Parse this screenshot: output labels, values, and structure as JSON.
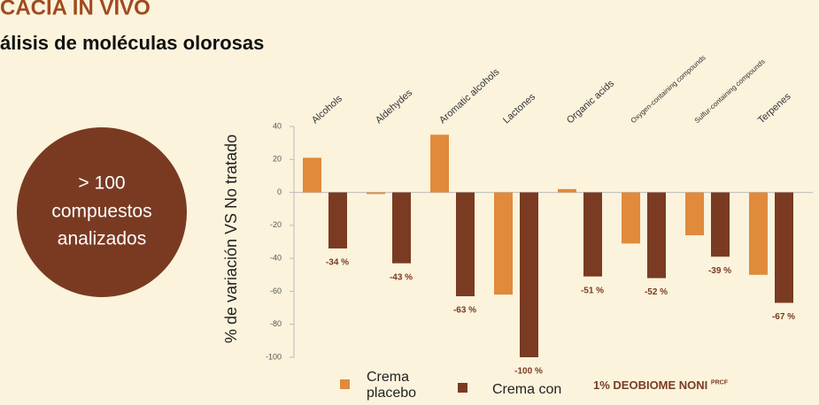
{
  "header": {
    "title": "CACIA IN VIVO",
    "subtitle": "álisis de moléculas olorosas"
  },
  "badge": {
    "line1": "> 100",
    "line2": "compuestos",
    "line3": "analizados"
  },
  "chart_data": {
    "type": "bar",
    "ylabel": "% de variación VS No tratado",
    "categories": [
      "Alcohols",
      "Aldehydes",
      "Aromatic alcohols",
      "Lactones",
      "Organic acids",
      "Oxygen-containing compounds",
      "Sulfur-containing compounds",
      "Terpenes"
    ],
    "series": [
      {
        "name": "Crema placebo",
        "color": "#e08a3c",
        "values": [
          21,
          -1,
          35,
          -62,
          2,
          -31,
          -26,
          -50
        ]
      },
      {
        "name": "Crema con",
        "color": "#7a3b22",
        "values": [
          -34,
          -43,
          -63,
          -100,
          -51,
          -52,
          -39,
          -67
        ],
        "value_labels": [
          "-34 %",
          "-43 %",
          "-63 %",
          "-100 %",
          "-51 %",
          "-52 %",
          "-39 %",
          "-67 %"
        ]
      }
    ],
    "legend_extra": "1% DEOBIOME NONI",
    "legend_superscript": "PRCF",
    "ylim": [
      -100,
      40
    ],
    "yticks": [
      40,
      20,
      0,
      -20,
      -40,
      -60,
      -80,
      -100
    ]
  }
}
